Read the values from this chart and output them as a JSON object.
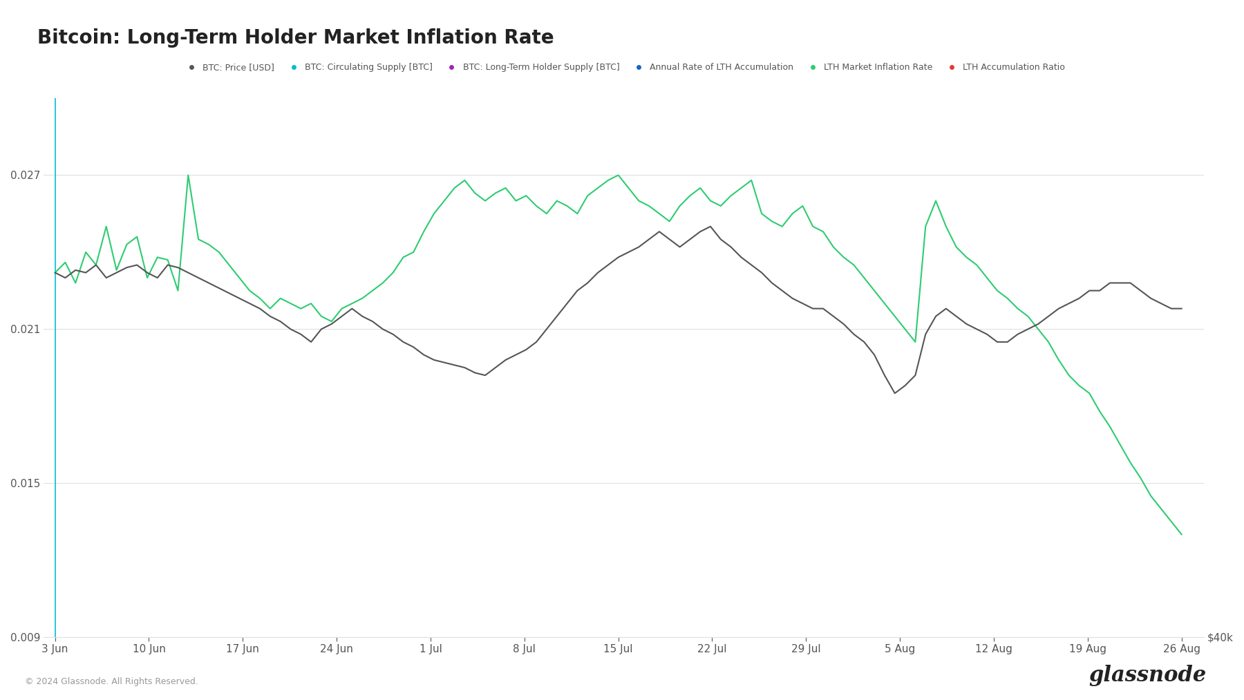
{
  "title": "Bitcoin: Long-Term Holder Market Inflation Rate",
  "legend_items": [
    {
      "label": "BTC: Price [USD]",
      "color": "#555555",
      "marker": "o"
    },
    {
      "label": "BTC: Circulating Supply [BTC]",
      "color": "#00bcd4",
      "marker": "o"
    },
    {
      "label": "BTC: Long-Term Holder Supply [BTC]",
      "color": "#9c27b0",
      "marker": "o"
    },
    {
      "label": "Annual Rate of LTH Accumulation",
      "color": "#1565c0",
      "marker": "o"
    },
    {
      "label": "LTH Market Inflation Rate",
      "color": "#2ecc71",
      "marker": "o"
    },
    {
      "label": "LTH Accumulation Ratio",
      "color": "#e53935",
      "marker": "o"
    }
  ],
  "ylabel_left": "",
  "yticks_left": [
    0.009,
    0.015,
    0.021,
    0.027
  ],
  "ytick_right_label": "$40k",
  "ylim": [
    0.009,
    0.03
  ],
  "background_color": "#ffffff",
  "grid_color": "#e0e0e0",
  "title_fontsize": 20,
  "tick_fontsize": 11,
  "legend_fontsize": 9,
  "footer_text": "© 2024 Glassnode. All Rights Reserved.",
  "x_tick_labels": [
    "3 Jun",
    "10 Jun",
    "17 Jun",
    "24 Jun",
    "1 Jul",
    "8 Jul",
    "15 Jul",
    "22 Jul",
    "29 Jul",
    "5 Aug",
    "12 Aug",
    "19 Aug",
    "26 Aug"
  ],
  "green_line": [
    0.0232,
    0.0236,
    0.0228,
    0.024,
    0.0235,
    0.025,
    0.0233,
    0.0243,
    0.0246,
    0.023,
    0.0238,
    0.0237,
    0.0225,
    0.027,
    0.0245,
    0.0243,
    0.024,
    0.0235,
    0.023,
    0.0225,
    0.0222,
    0.0218,
    0.0222,
    0.022,
    0.0218,
    0.022,
    0.0215,
    0.0213,
    0.0218,
    0.022,
    0.0222,
    0.0225,
    0.0228,
    0.0232,
    0.0238,
    0.024,
    0.0248,
    0.0255,
    0.026,
    0.0265,
    0.0268,
    0.0263,
    0.026,
    0.0263,
    0.0265,
    0.026,
    0.0262,
    0.0258,
    0.0255,
    0.026,
    0.0258,
    0.0255,
    0.0262,
    0.0265,
    0.0268,
    0.027,
    0.0265,
    0.026,
    0.0258,
    0.0255,
    0.0252,
    0.0258,
    0.0262,
    0.0265,
    0.026,
    0.0258,
    0.0262,
    0.0265,
    0.0268,
    0.0255,
    0.0252,
    0.025,
    0.0255,
    0.0258,
    0.025,
    0.0248,
    0.0242,
    0.0238,
    0.0235,
    0.023,
    0.0225,
    0.022,
    0.0215,
    0.021,
    0.0205,
    0.025,
    0.026,
    0.025,
    0.0242,
    0.0238,
    0.0235,
    0.023,
    0.0225,
    0.0222,
    0.0218,
    0.0215,
    0.021,
    0.0205,
    0.0198,
    0.0192,
    0.0188,
    0.0185,
    0.0178,
    0.0172,
    0.0165,
    0.0158,
    0.0152,
    0.0145,
    0.014,
    0.0135,
    0.013
  ],
  "dark_line": [
    0.0232,
    0.023,
    0.0233,
    0.0232,
    0.0235,
    0.023,
    0.0232,
    0.0234,
    0.0235,
    0.0232,
    0.023,
    0.0235,
    0.0234,
    0.0232,
    0.023,
    0.0228,
    0.0226,
    0.0224,
    0.0222,
    0.022,
    0.0218,
    0.0215,
    0.0213,
    0.021,
    0.0208,
    0.0205,
    0.021,
    0.0212,
    0.0215,
    0.0218,
    0.0215,
    0.0213,
    0.021,
    0.0208,
    0.0205,
    0.0203,
    0.02,
    0.0198,
    0.0197,
    0.0196,
    0.0195,
    0.0193,
    0.0192,
    0.0195,
    0.0198,
    0.02,
    0.0202,
    0.0205,
    0.021,
    0.0215,
    0.022,
    0.0225,
    0.0228,
    0.0232,
    0.0235,
    0.0238,
    0.024,
    0.0242,
    0.0245,
    0.0248,
    0.0245,
    0.0242,
    0.0245,
    0.0248,
    0.025,
    0.0245,
    0.0242,
    0.0238,
    0.0235,
    0.0232,
    0.0228,
    0.0225,
    0.0222,
    0.022,
    0.0218,
    0.0218,
    0.0215,
    0.0212,
    0.0208,
    0.0205,
    0.02,
    0.0192,
    0.0185,
    0.0188,
    0.0192,
    0.0208,
    0.0215,
    0.0218,
    0.0215,
    0.0212,
    0.021,
    0.0208,
    0.0205,
    0.0205,
    0.0208,
    0.021,
    0.0212,
    0.0215,
    0.0218,
    0.022,
    0.0222,
    0.0225,
    0.0225,
    0.0228,
    0.0228,
    0.0228,
    0.0225,
    0.0222,
    0.022,
    0.0218,
    0.0218
  ]
}
